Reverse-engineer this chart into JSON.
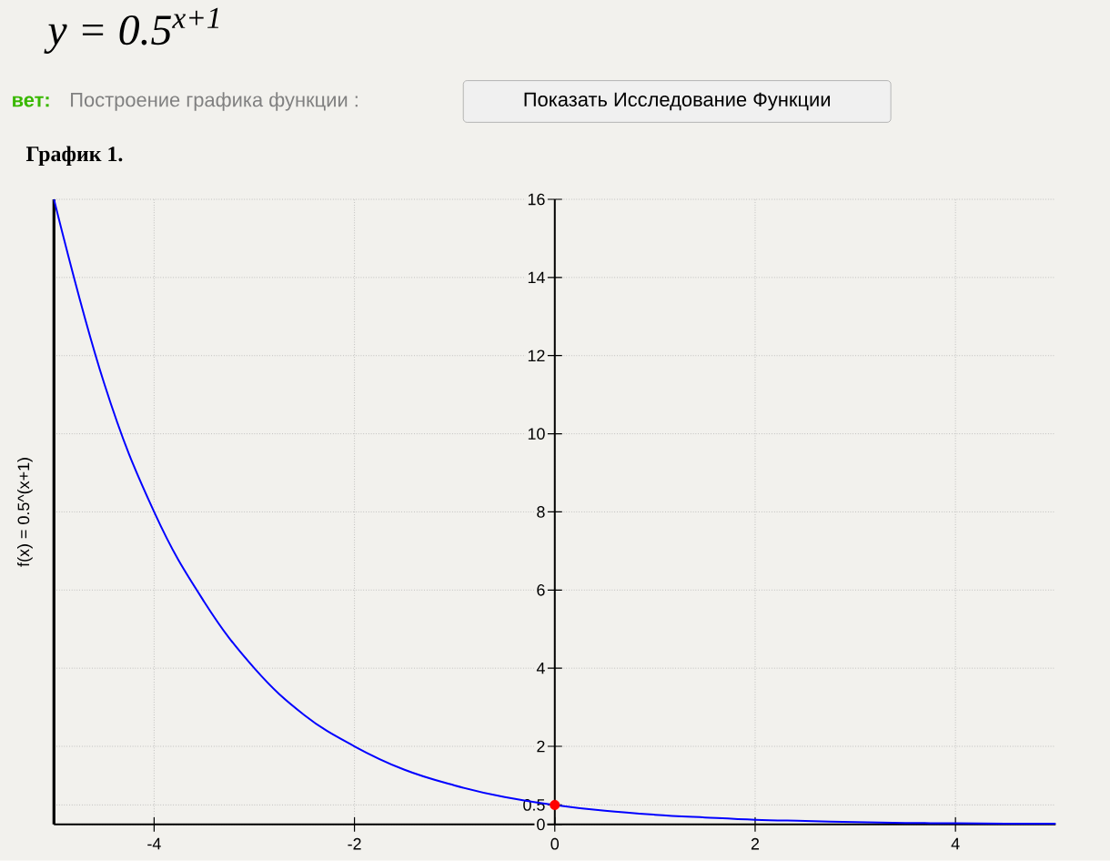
{
  "chart_data": {
    "type": "line",
    "title": "y = 0.5$^{x+1}$",
    "ylabel": "f(x) = 0.5^(x+1)",
    "annotations": [
      "вет:",
      "Построение графика функции :",
      "Показать Исследование Функции",
      "График 1."
    ],
    "xlim": [
      -5,
      5
    ],
    "ylim": [
      0,
      16
    ],
    "xticks": [
      -4,
      -2,
      0,
      2,
      4
    ],
    "yticks": [
      0,
      0.5,
      2,
      4,
      6,
      8,
      10,
      12,
      14,
      16
    ],
    "grid": true,
    "marker": "none",
    "line_style": "solid",
    "series": [
      {
        "color": "#0000ff",
        "x": [
          -5,
          -4.5,
          -4,
          -3.5,
          -3,
          -2.5,
          -2,
          -1.5,
          -1,
          -0.5,
          0,
          0.5,
          1,
          1.5,
          2,
          2.5,
          3,
          3.5,
          4,
          4.5,
          5
        ],
        "values": [
          16,
          11.3,
          8,
          5.7,
          4,
          2.8,
          2,
          1.4,
          1,
          0.7,
          0.5,
          0.35,
          0.25,
          0.18,
          0.12,
          0.09,
          0.06,
          0.04,
          0.03,
          0.02,
          0.02
        ]
      },
      {
        "type": "scatter",
        "color": "#ff0000",
        "marker": "circle",
        "x": [
          0
        ],
        "values": [
          0.5
        ]
      }
    ]
  }
}
